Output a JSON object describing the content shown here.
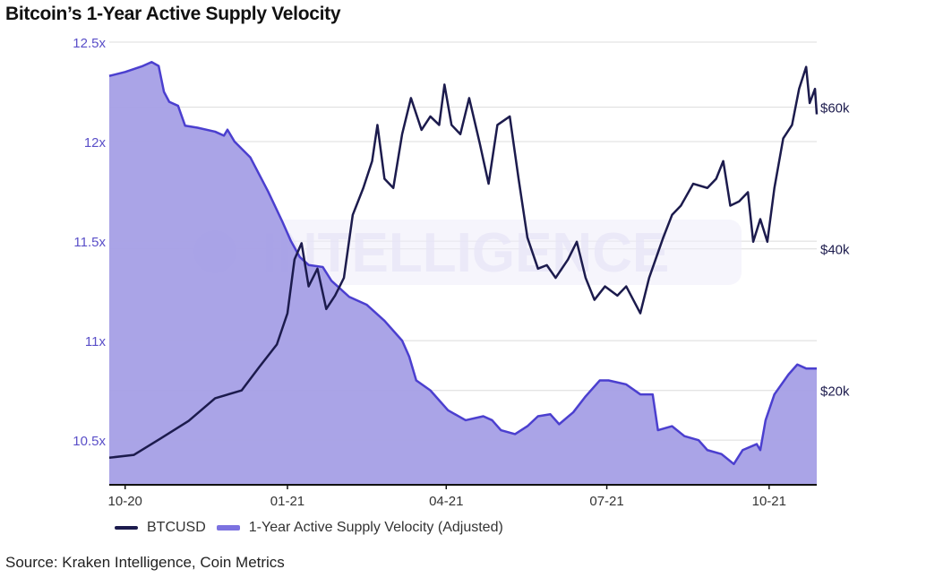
{
  "chart_data": {
    "type": "line",
    "title": "Bitcoin’s 1-Year Active Supply Velocity",
    "source": "Source: Kraken Intelligence, Coin Metrics",
    "watermark": "INTELLIGENCE",
    "x_unit": "days since 2020-10-01",
    "xlim": [
      -9,
      392
    ],
    "x_ticks": [
      {
        "d": 0,
        "label": "10-20"
      },
      {
        "d": 92,
        "label": "01-21"
      },
      {
        "d": 182,
        "label": "04-21"
      },
      {
        "d": 273,
        "label": "07-21"
      },
      {
        "d": 365,
        "label": "10-21"
      }
    ],
    "left_axis": {
      "ylim": [
        10.28,
        12.5
      ],
      "ticks": [
        {
          "v": 12.5,
          "label": "12.5x"
        },
        {
          "v": 12,
          "label": "12x"
        },
        {
          "v": 11.5,
          "label": "11.5x"
        },
        {
          "v": 11,
          "label": "11x"
        },
        {
          "v": 10.5,
          "label": "10.5x"
        }
      ]
    },
    "right_axis": {
      "unit": "USD thousands",
      "ylim": [
        6.8,
        69.2
      ],
      "ticks": [
        {
          "v": 60,
          "label": "$60k"
        },
        {
          "v": 40,
          "label": "$40k"
        },
        {
          "v": 20,
          "label": "$20k"
        }
      ]
    },
    "legend": {
      "placement": "bottom-left"
    },
    "series": [
      {
        "name": "BTCUSD",
        "axis": "right",
        "color": "#1c1b4d",
        "type": "line",
        "points": [
          [
            -9,
            10.5
          ],
          [
            5,
            10.9
          ],
          [
            20,
            13.2
          ],
          [
            36,
            15.7
          ],
          [
            51,
            18.9
          ],
          [
            66,
            20
          ],
          [
            76,
            23.3
          ],
          [
            86,
            26.5
          ],
          [
            92,
            30.9
          ],
          [
            96,
            38.5
          ],
          [
            100,
            40.8
          ],
          [
            104,
            34.7
          ],
          [
            109,
            37.2
          ],
          [
            114,
            31.5
          ],
          [
            119,
            33.4
          ],
          [
            124,
            35.9
          ],
          [
            129,
            44.8
          ],
          [
            135,
            48.6
          ],
          [
            140,
            52.4
          ],
          [
            143,
            57.5
          ],
          [
            147,
            49.9
          ],
          [
            152,
            48.6
          ],
          [
            157,
            56.2
          ],
          [
            162,
            61.3
          ],
          [
            168,
            56.8
          ],
          [
            173,
            58.7
          ],
          [
            178,
            57.5
          ],
          [
            181,
            63.2
          ],
          [
            185,
            57.5
          ],
          [
            190,
            56.2
          ],
          [
            195,
            61.3
          ],
          [
            201,
            54.9
          ],
          [
            206,
            49.2
          ],
          [
            211,
            57.5
          ],
          [
            218,
            58.7
          ],
          [
            223,
            49.9
          ],
          [
            228,
            41.6
          ],
          [
            234,
            37.2
          ],
          [
            239,
            37.7
          ],
          [
            244,
            35.9
          ],
          [
            251,
            38.5
          ],
          [
            256,
            41
          ],
          [
            261,
            35.9
          ],
          [
            266,
            32.8
          ],
          [
            272,
            34.7
          ],
          [
            279,
            33.4
          ],
          [
            284,
            34.7
          ],
          [
            292,
            30.9
          ],
          [
            297,
            35.9
          ],
          [
            305,
            41.6
          ],
          [
            310,
            44.8
          ],
          [
            315,
            46.1
          ],
          [
            322,
            49.2
          ],
          [
            330,
            48.6
          ],
          [
            335,
            49.9
          ],
          [
            339,
            52.4
          ],
          [
            343,
            46.1
          ],
          [
            348,
            46.7
          ],
          [
            353,
            48
          ],
          [
            356,
            41
          ],
          [
            360,
            44.2
          ],
          [
            364,
            41
          ],
          [
            368,
            48.6
          ],
          [
            373,
            55.6
          ],
          [
            378,
            57.5
          ],
          [
            382,
            62.6
          ],
          [
            386,
            65.7
          ],
          [
            388,
            60.6
          ],
          [
            391,
            62.6
          ],
          [
            392,
            59
          ]
        ]
      },
      {
        "name": "1-Year Active Supply Velocity (Adjusted)",
        "axis": "left",
        "color": "#4b3fcf",
        "fill": "#a59fe6",
        "type": "area",
        "points": [
          [
            -9,
            12.33
          ],
          [
            0,
            12.35
          ],
          [
            10,
            12.38
          ],
          [
            15,
            12.4
          ],
          [
            19,
            12.38
          ],
          [
            22,
            12.25
          ],
          [
            25,
            12.2
          ],
          [
            30,
            12.18
          ],
          [
            34,
            12.08
          ],
          [
            41,
            12.07
          ],
          [
            51,
            12.05
          ],
          [
            56,
            12.03
          ],
          [
            58,
            12.06
          ],
          [
            62,
            12.0
          ],
          [
            71,
            11.92
          ],
          [
            81,
            11.75
          ],
          [
            89,
            11.6
          ],
          [
            94,
            11.5
          ],
          [
            99,
            11.42
          ],
          [
            104,
            11.38
          ],
          [
            112,
            11.37
          ],
          [
            117,
            11.3
          ],
          [
            127,
            11.22
          ],
          [
            137,
            11.18
          ],
          [
            147,
            11.1
          ],
          [
            157,
            11.0
          ],
          [
            161,
            10.92
          ],
          [
            165,
            10.8
          ],
          [
            173,
            10.75
          ],
          [
            183,
            10.65
          ],
          [
            193,
            10.6
          ],
          [
            203,
            10.62
          ],
          [
            208,
            10.6
          ],
          [
            213,
            10.55
          ],
          [
            221,
            10.53
          ],
          [
            228,
            10.57
          ],
          [
            234,
            10.62
          ],
          [
            241,
            10.63
          ],
          [
            246,
            10.58
          ],
          [
            254,
            10.64
          ],
          [
            261,
            10.72
          ],
          [
            269,
            10.8
          ],
          [
            274,
            10.8
          ],
          [
            284,
            10.78
          ],
          [
            292,
            10.73
          ],
          [
            299,
            10.73
          ],
          [
            302,
            10.55
          ],
          [
            310,
            10.57
          ],
          [
            317,
            10.52
          ],
          [
            325,
            10.5
          ],
          [
            330,
            10.45
          ],
          [
            338,
            10.43
          ],
          [
            345,
            10.38
          ],
          [
            350,
            10.45
          ],
          [
            358,
            10.48
          ],
          [
            360,
            10.45
          ],
          [
            363,
            10.6
          ],
          [
            368,
            10.73
          ],
          [
            376,
            10.83
          ],
          [
            381,
            10.88
          ],
          [
            386,
            10.86
          ],
          [
            392,
            10.86
          ]
        ]
      }
    ]
  }
}
